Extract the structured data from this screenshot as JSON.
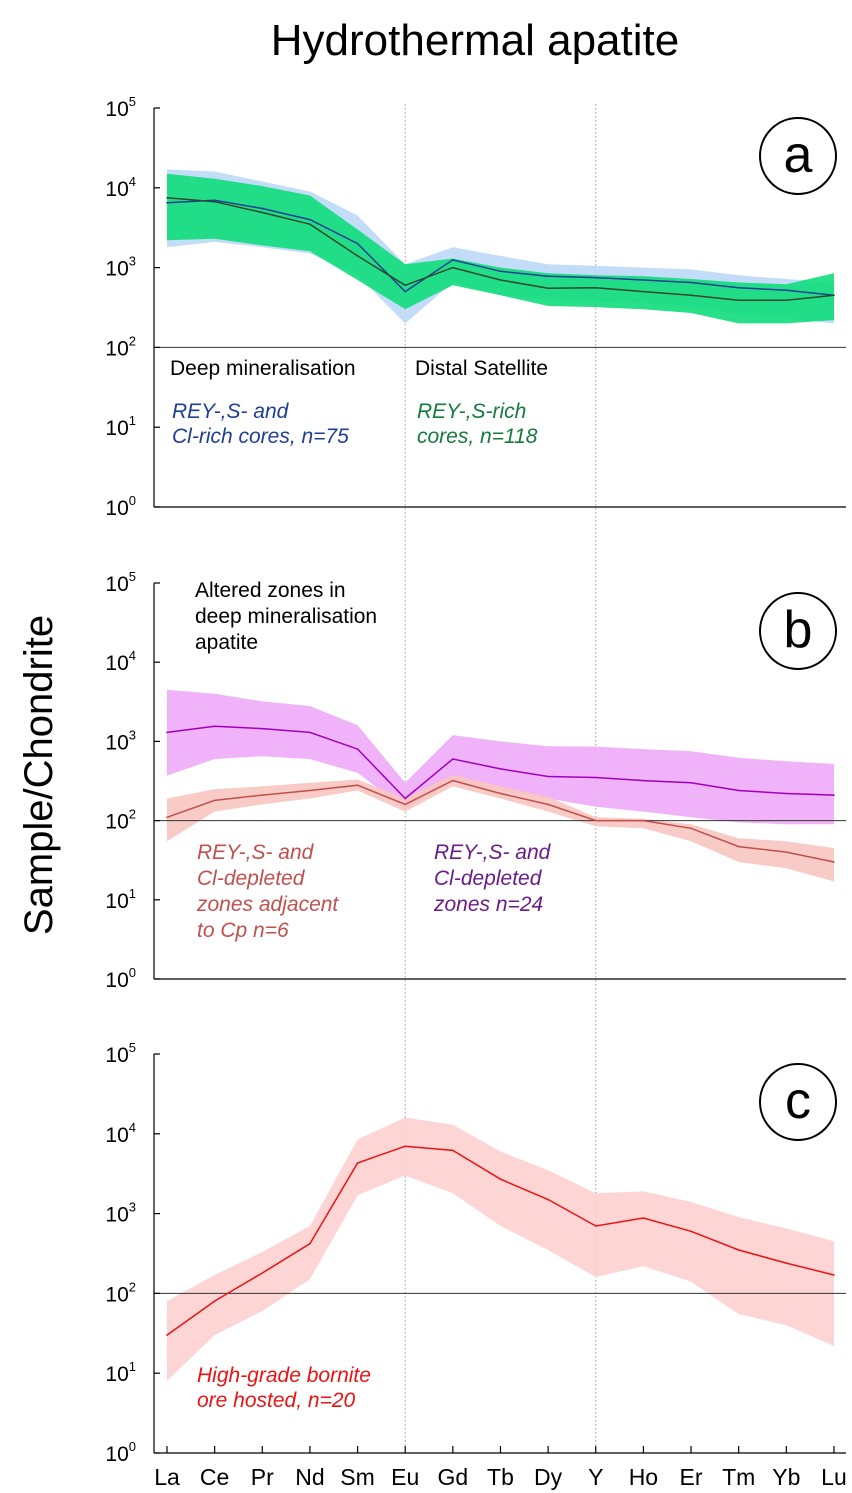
{
  "chart_data": {
    "title": "Hydrothermal apatite",
    "ylabel": "Sample/Chondrite",
    "categories": [
      "La",
      "Ce",
      "Pr",
      "Nd",
      "Sm",
      "Eu",
      "Gd",
      "Tb",
      "Dy",
      "Y",
      "Ho",
      "Er",
      "Tm",
      "Yb",
      "Lu"
    ],
    "y_scale": "log",
    "y_tick_labels": [
      {
        "base": "10",
        "exp": "0"
      },
      {
        "base": "10",
        "exp": "1"
      },
      {
        "base": "10",
        "exp": "2"
      },
      {
        "base": "10",
        "exp": "3"
      },
      {
        "base": "10",
        "exp": "4"
      },
      {
        "base": "10",
        "exp": "5"
      }
    ],
    "reference_lines": [
      {
        "type": "horizontal",
        "y": 100
      },
      {
        "type": "vertical",
        "x": "Eu",
        "style": "dotted"
      },
      {
        "type": "vertical",
        "x": "Y",
        "style": "dotted"
      }
    ],
    "panels": [
      {
        "type": "line",
        "label": "a",
        "ylim": [
          1,
          100000
        ],
        "annotations": [
          {
            "text": "Deep mineralisation",
            "color": "#000000",
            "italic": false
          },
          {
            "text": "Distal Satellite",
            "color": "#000000",
            "italic": false
          },
          {
            "lines": [
              "REY-,S- and",
              "Cl-rich cores, n=75"
            ],
            "color": "#1f3f95",
            "italic": true
          },
          {
            "lines": [
              "REY-,S-rich",
              "cores, n=118"
            ],
            "color": "#157a3c",
            "italic": true
          }
        ],
        "series": [
          {
            "name": "REY-,S- and Cl-rich cores, n=75",
            "line_color": "#1f3f95",
            "band_color": "#bcd8f6",
            "values": [
              6500,
              7000,
              5500,
              4000,
              2000,
              500,
              1250,
              900,
              780,
              750,
              700,
              650,
              560,
              520,
              450
            ],
            "lower": [
              1800,
              2100,
              1800,
              1500,
              800,
              200,
              650,
              450,
              400,
              380,
              360,
              320,
              260,
              230,
              200
            ],
            "upper": [
              17000,
              16000,
              12000,
              9000,
              4500,
              1100,
              1800,
              1400,
              1100,
              1050,
              1000,
              950,
              800,
              720,
              650
            ]
          },
          {
            "name": "REY-,S-rich cores, n=118",
            "line_color": "#2b4a2b",
            "band_color": "#11dd7a",
            "values": [
              7500,
              6700,
              4900,
              3500,
              1400,
              600,
              1000,
              700,
              550,
              560,
              500,
              450,
              390,
              390,
              450
            ],
            "lower": [
              2200,
              2300,
              1900,
              1600,
              700,
              300,
              600,
              450,
              330,
              320,
              300,
              270,
              200,
              200,
              220
            ],
            "upper": [
              15000,
              13000,
              10500,
              8000,
              3000,
              1100,
              1300,
              1000,
              850,
              800,
              780,
              720,
              650,
              620,
              850
            ]
          }
        ]
      },
      {
        "type": "line",
        "label": "b",
        "ylim": [
          1,
          100000
        ],
        "annotations": [
          {
            "lines": [
              "Altered zones in",
              "deep mineralisation",
              "apatite"
            ],
            "color": "#000000",
            "italic": false
          },
          {
            "lines": [
              "REY-,S- and",
              "Cl-depleted",
              "zones adjacent",
              "to Cp n=6"
            ],
            "color": "#c0504d",
            "italic": true
          },
          {
            "lines": [
              "REY-,S- and",
              "Cl-depleted",
              "zones n=24"
            ],
            "color": "#6a1b8a",
            "italic": true
          }
        ],
        "series": [
          {
            "name": "REY-,S- and Cl-depleted zones n=24",
            "line_color": "#a000c0",
            "band_color": "#eeaaf7",
            "values": [
              1300,
              1550,
              1450,
              1300,
              800,
              190,
              600,
              450,
              360,
              350,
              320,
              300,
              240,
              220,
              210
            ],
            "lower": [
              370,
              600,
              650,
              600,
              400,
              140,
              320,
              240,
              190,
              150,
              130,
              110,
              95,
              90,
              90
            ],
            "upper": [
              4500,
              4000,
              3200,
              2800,
              1600,
              300,
              1200,
              1000,
              870,
              860,
              800,
              750,
              620,
              560,
              520
            ]
          },
          {
            "name": "REY-,S- and Cl-depleted zones adjacent to Cp n=6",
            "line_color": "#c0504d",
            "band_color": "#f8c5c0",
            "values": [
              110,
              180,
              210,
              240,
              280,
              160,
              320,
              220,
              160,
              100,
              100,
              80,
              47,
              40,
              30
            ],
            "lower": [
              55,
              130,
              160,
              190,
              240,
              130,
              270,
              190,
              130,
              85,
              80,
              55,
              30,
              25,
              17
            ],
            "upper": [
              190,
              250,
              270,
              300,
              330,
              190,
              380,
              270,
              200,
              110,
              105,
              90,
              60,
              55,
              45
            ]
          }
        ]
      },
      {
        "type": "line",
        "label": "c",
        "ylim": [
          1,
          100000
        ],
        "annotations": [
          {
            "lines": [
              "High-grade bornite",
              "ore hosted, n=20"
            ],
            "color": "#ee1111",
            "italic": true
          }
        ],
        "series": [
          {
            "name": "High-grade bornite ore hosted, n=20",
            "line_color": "#ee1111",
            "band_color": "#fcd0cf",
            "values": [
              30,
              80,
              180,
              420,
              4300,
              7000,
              6200,
              2700,
              1500,
              700,
              880,
              600,
              350,
              240,
              170
            ],
            "lower": [
              8,
              30,
              60,
              150,
              1700,
              3000,
              1800,
              700,
              350,
              160,
              220,
              140,
              55,
              40,
              22
            ],
            "upper": [
              80,
              170,
              330,
              700,
              8500,
              16000,
              13000,
              6000,
              3500,
              1800,
              1900,
              1400,
              900,
              650,
              450
            ]
          }
        ]
      }
    ]
  }
}
